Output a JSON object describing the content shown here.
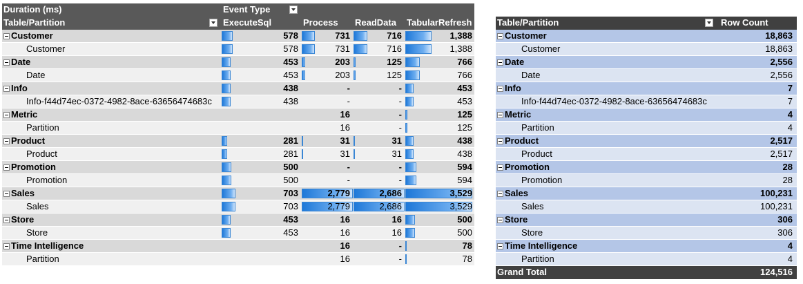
{
  "left_pivot": {
    "header": {
      "values_label": "Duration (ms)",
      "column_field": "Event Type",
      "row_field": "Table/Partition",
      "columns": [
        "ExecuteSql",
        "Process",
        "ReadData",
        "TabularRefresh"
      ]
    },
    "rows": [
      {
        "type": "group",
        "label": "Customer",
        "values": [
          "578",
          "731",
          "716",
          "1,388"
        ],
        "bars": [
          0.164,
          0.263,
          0.267,
          0.393
        ]
      },
      {
        "type": "item",
        "label": "Customer",
        "values": [
          "578",
          "731",
          "716",
          "1,388"
        ],
        "bars": [
          0.164,
          0.263,
          0.267,
          0.393
        ]
      },
      {
        "type": "group",
        "label": "Date",
        "values": [
          "453",
          "203",
          "125",
          "766"
        ],
        "bars": [
          0.129,
          0.073,
          0.047,
          0.217
        ]
      },
      {
        "type": "item",
        "label": "Date",
        "values": [
          "453",
          "203",
          "125",
          "766"
        ],
        "bars": [
          0.129,
          0.073,
          0.047,
          0.217
        ]
      },
      {
        "type": "group",
        "label": "Info",
        "values": [
          "438",
          "-",
          "-",
          "453"
        ],
        "bars": [
          0.125,
          0,
          0,
          0.128
        ]
      },
      {
        "type": "item",
        "label": "Info-f44d74ec-0372-4982-8ace-63656474683c",
        "values": [
          "438",
          "-",
          "-",
          "453"
        ],
        "bars": [
          0.125,
          0,
          0,
          0.128
        ]
      },
      {
        "type": "group",
        "label": "Metric",
        "values": [
          "",
          "16",
          "-",
          "125"
        ],
        "bars": [
          0,
          0,
          0,
          0.035
        ]
      },
      {
        "type": "item",
        "label": "Partition",
        "values": [
          "",
          "16",
          "-",
          "125"
        ],
        "bars": [
          0,
          0,
          0,
          0.035
        ]
      },
      {
        "type": "group",
        "label": "Product",
        "values": [
          "281",
          "31",
          "31",
          "438"
        ],
        "bars": [
          0.08,
          0.011,
          0.012,
          0.124
        ]
      },
      {
        "type": "item",
        "label": "Product",
        "values": [
          "281",
          "31",
          "31",
          "438"
        ],
        "bars": [
          0.08,
          0.011,
          0.012,
          0.124
        ]
      },
      {
        "type": "group",
        "label": "Promotion",
        "values": [
          "500",
          "-",
          "-",
          "594"
        ],
        "bars": [
          0.142,
          0,
          0,
          0.168
        ]
      },
      {
        "type": "item",
        "label": "Promotion",
        "values": [
          "500",
          "-",
          "-",
          "594"
        ],
        "bars": [
          0.142,
          0,
          0,
          0.168
        ]
      },
      {
        "type": "group",
        "label": "Sales",
        "values": [
          "703",
          "2,779",
          "2,686",
          "3,529"
        ],
        "bars": [
          0.2,
          1,
          1,
          1
        ]
      },
      {
        "type": "item",
        "label": "Sales",
        "values": [
          "703",
          "2,779",
          "2,686",
          "3,529"
        ],
        "bars": [
          0.2,
          1,
          1,
          1
        ]
      },
      {
        "type": "group",
        "label": "Store",
        "values": [
          "453",
          "16",
          "16",
          "500"
        ],
        "bars": [
          0.129,
          0,
          0,
          0.142
        ]
      },
      {
        "type": "item",
        "label": "Store",
        "values": [
          "453",
          "16",
          "16",
          "500"
        ],
        "bars": [
          0.129,
          0,
          0,
          0.142
        ]
      },
      {
        "type": "group",
        "label": "Time Intelligence",
        "values": [
          "",
          "16",
          "-",
          "78"
        ],
        "bars": [
          0,
          0,
          0,
          0.022
        ]
      },
      {
        "type": "item",
        "label": "Partition",
        "values": [
          "",
          "16",
          "-",
          "78"
        ],
        "bars": [
          0,
          0,
          0,
          0.022
        ]
      }
    ]
  },
  "right_pivot": {
    "header": {
      "row_field": "Table/Partition",
      "value_field": "Row Count"
    },
    "rows": [
      {
        "type": "group",
        "label": "Customer",
        "value": "18,863"
      },
      {
        "type": "item",
        "label": "Customer",
        "value": "18,863"
      },
      {
        "type": "group",
        "label": "Date",
        "value": "2,556"
      },
      {
        "type": "item",
        "label": "Date",
        "value": "2,556"
      },
      {
        "type": "group",
        "label": "Info",
        "value": "7"
      },
      {
        "type": "item",
        "label": "Info-f44d74ec-0372-4982-8ace-63656474683c",
        "value": "7"
      },
      {
        "type": "group",
        "label": "Metric",
        "value": "4"
      },
      {
        "type": "item",
        "label": "Partition",
        "value": "4"
      },
      {
        "type": "group",
        "label": "Product",
        "value": "2,517"
      },
      {
        "type": "item",
        "label": "Product",
        "value": "2,517"
      },
      {
        "type": "group",
        "label": "Promotion",
        "value": "28"
      },
      {
        "type": "item",
        "label": "Promotion",
        "value": "28"
      },
      {
        "type": "group",
        "label": "Sales",
        "value": "100,231"
      },
      {
        "type": "item",
        "label": "Sales",
        "value": "100,231"
      },
      {
        "type": "group",
        "label": "Store",
        "value": "306"
      },
      {
        "type": "item",
        "label": "Store",
        "value": "306"
      },
      {
        "type": "group",
        "label": "Time Intelligence",
        "value": "4"
      },
      {
        "type": "item",
        "label": "Partition",
        "value": "4"
      }
    ],
    "grand_total": {
      "label": "Grand Total",
      "value": "124,516"
    }
  },
  "colors": {
    "left_header_bg": "#595959",
    "left_group_bg": "#d9d9d9",
    "left_item_bg": "#f0f0f0",
    "right_header_bg": "#404040",
    "right_group_bg": "#b4c6e7",
    "right_item_bg": "#dce4f2",
    "databar_color": "#1e78d8"
  },
  "icons": {
    "filter_dropdown": "filter-dropdown-icon",
    "collapse": "collapse-minus-icon"
  }
}
